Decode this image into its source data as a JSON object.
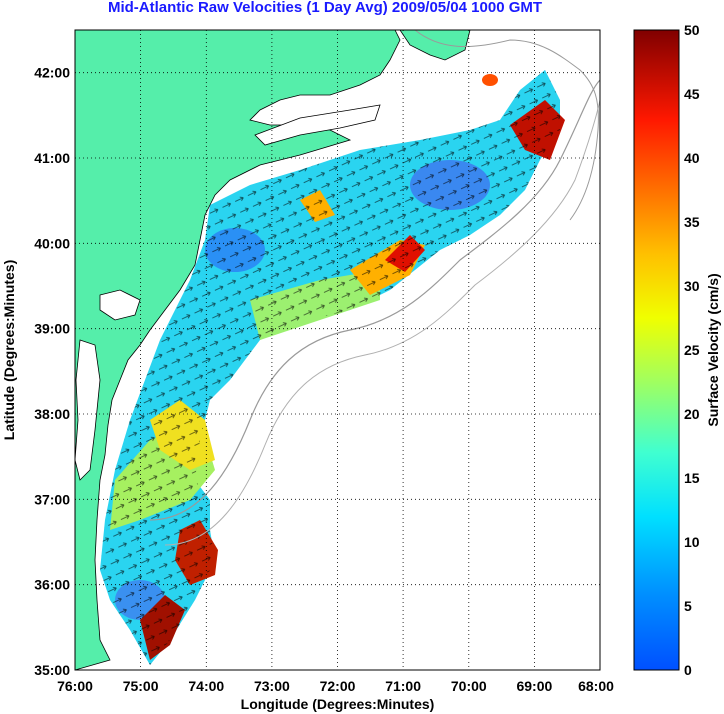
{
  "title": "Mid-Atlantic Raw Velocities (1 Day Avg) 2009/05/04 1000 GMT",
  "axes": {
    "x_label": "Longitude (Degrees:Minutes)",
    "y_label": "Latitude (Degrees:Minutes)",
    "x_ticks": [
      "76:00",
      "75:00",
      "74:00",
      "73:00",
      "72:00",
      "71:00",
      "70:00",
      "69:00",
      "68:00"
    ],
    "y_ticks": [
      "42:00",
      "41:00",
      "40:00",
      "39:00",
      "38:00",
      "37:00",
      "36:00",
      "35:00"
    ],
    "x_range_deg_west": [
      76,
      68
    ],
    "y_range_deg_north": [
      35,
      42.5
    ]
  },
  "colorbar": {
    "label": "Surface Velocity (cm/s)",
    "ticks": [
      "50",
      "45",
      "40",
      "35",
      "30",
      "25",
      "20",
      "15",
      "10",
      "5",
      "0"
    ],
    "range_cm_s": [
      0,
      50
    ],
    "colormap": "jet"
  },
  "colors": {
    "land": "#55eeaa",
    "title": "#1a1aff",
    "ocean_background": "#ffffff",
    "bathymetry": "#999999"
  },
  "grid": "dotted"
}
